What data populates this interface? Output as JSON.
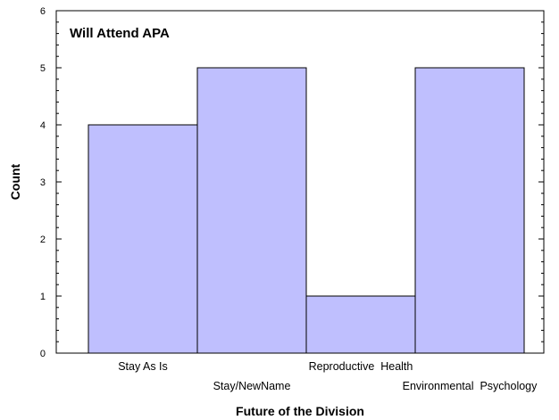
{
  "chart_data": {
    "type": "bar",
    "title": "Will Attend APA",
    "xlabel": "Future of the Division",
    "ylabel": "Count",
    "categories": [
      "Stay As Is",
      "Stay/NewName",
      "Reproductive  Health",
      "Environmental  Psychology"
    ],
    "values": [
      4,
      5,
      1,
      5
    ],
    "ylim": [
      0,
      6
    ],
    "yticks": [
      0,
      1,
      2,
      3,
      4,
      5,
      6
    ],
    "grid": false,
    "legend": "none",
    "bar_color": "#bfbffe",
    "bar_edge_color": "#000000"
  }
}
